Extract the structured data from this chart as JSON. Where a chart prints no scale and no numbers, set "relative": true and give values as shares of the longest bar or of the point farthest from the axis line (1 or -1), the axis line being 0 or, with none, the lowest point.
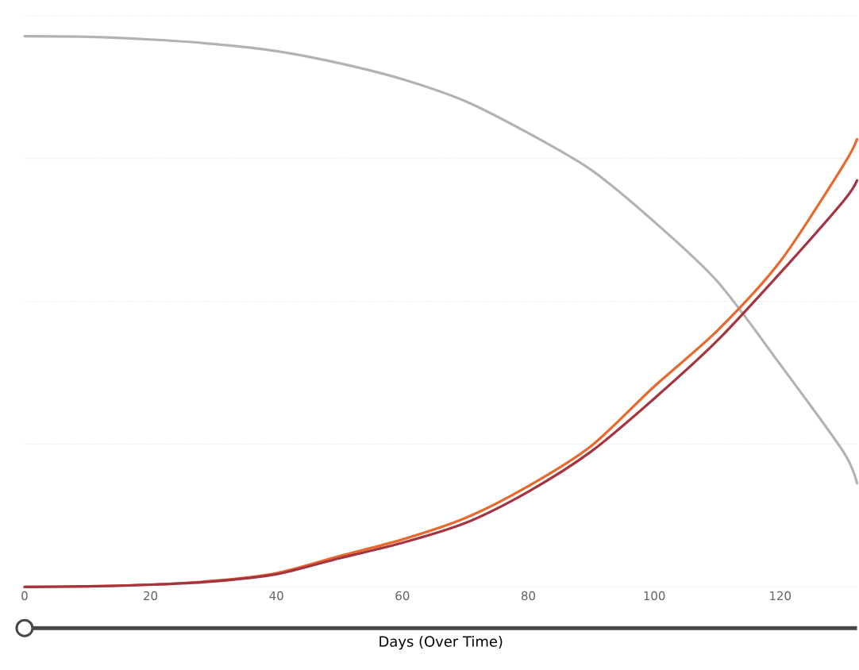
{
  "chart_data": {
    "type": "line",
    "relative": true,
    "xlabel": "Days (Over Time)",
    "x": [
      0,
      10,
      20,
      30,
      40,
      50,
      60,
      70,
      80,
      90,
      100,
      110,
      120,
      130,
      132.2
    ],
    "series": [
      {
        "color": "#b3b3b3",
        "values": [
          1.0,
          0.999,
          0.994,
          0.986,
          0.973,
          0.951,
          0.922,
          0.882,
          0.824,
          0.757,
          0.663,
          0.555,
          0.404,
          0.246,
          0.188
        ]
      },
      {
        "color": "#e8692e",
        "values": [
          0,
          0.001,
          0.004,
          0.011,
          0.025,
          0.056,
          0.086,
          0.125,
          0.183,
          0.256,
          0.364,
          0.465,
          0.591,
          0.765,
          0.813
        ]
      },
      {
        "color": "#a4343f",
        "values": [
          0,
          0.001,
          0.004,
          0.01,
          0.023,
          0.052,
          0.08,
          0.116,
          0.173,
          0.246,
          0.342,
          0.447,
          0.57,
          0.7,
          0.738
        ]
      }
    ],
    "xlim": [
      0,
      132.2
    ],
    "xticks": [
      0,
      20,
      40,
      60,
      80,
      100,
      120
    ],
    "grid": "y",
    "tick_labels": "x",
    "marker": "none",
    "line_style": "solid"
  }
}
